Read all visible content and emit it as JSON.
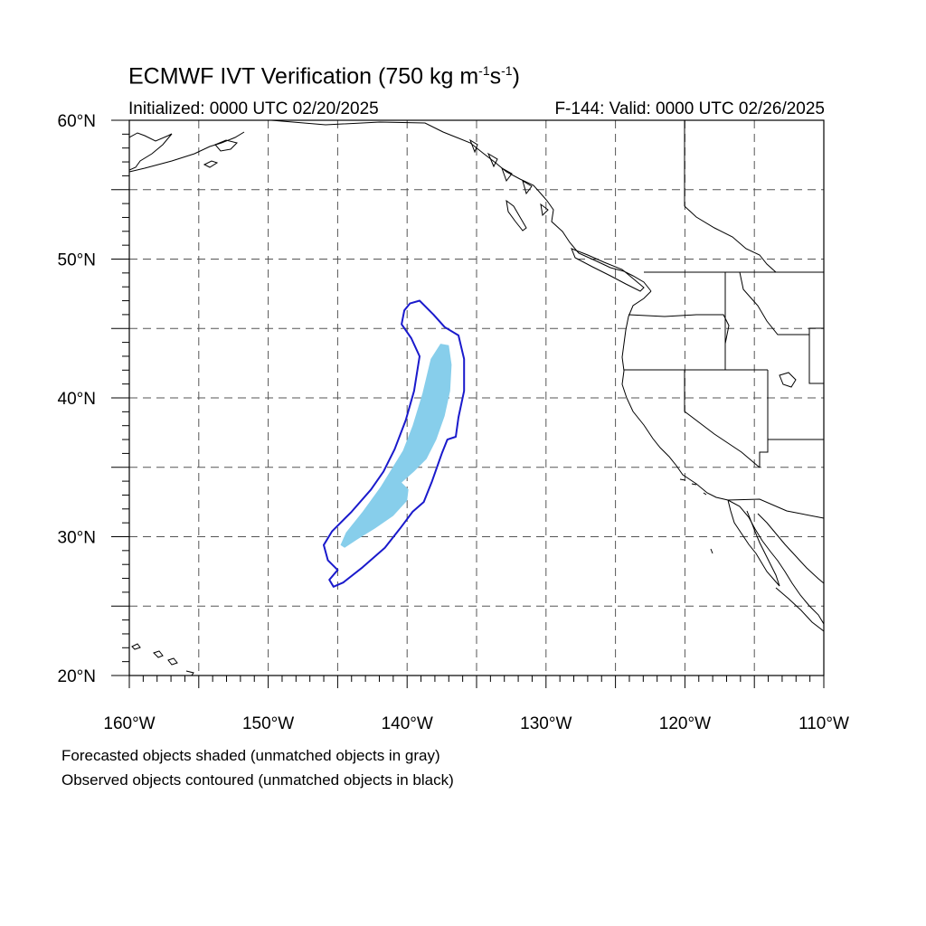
{
  "title": {
    "main": "ECMWF IVT Verification (750 kg m",
    "exp1": "-1",
    "s": "s",
    "exp2": "-1",
    "close": ")"
  },
  "subtitle": {
    "initialized": "Initialized: 0000 UTC 02/20/2025",
    "valid": "F-144: Valid: 0000 UTC 02/26/2025"
  },
  "map": {
    "extent": {
      "lon": [
        -160,
        -110
      ],
      "lat": [
        20,
        60
      ]
    },
    "gridlines": "dashed",
    "lat_labels": [
      {
        "lat": 60,
        "text": "60°N"
      },
      {
        "lat": 50,
        "text": "50°N"
      },
      {
        "lat": 40,
        "text": "40°N"
      },
      {
        "lat": 30,
        "text": "30°N"
      },
      {
        "lat": 20,
        "text": "20°N"
      }
    ],
    "lon_labels": [
      {
        "lon": -160,
        "text": "160°W"
      },
      {
        "lon": -150,
        "text": "150°W"
      },
      {
        "lon": -140,
        "text": "140°W"
      },
      {
        "lon": -130,
        "text": "130°W"
      },
      {
        "lon": -120,
        "text": "120°W"
      },
      {
        "lon": -110,
        "text": "110°W"
      }
    ],
    "colors": {
      "forecast_fill": "#87ceeb",
      "observed_contour": "#1a1acc",
      "coastline": "#000000",
      "grid": "#555555"
    },
    "forecast_object": {
      "style": "shaded",
      "outline": [
        [
          -144.8,
          29.4
        ],
        [
          -144.5,
          29.2
        ],
        [
          -143.6,
          29.8
        ],
        [
          -142.3,
          30.6
        ],
        [
          -141.0,
          31.5
        ],
        [
          -140.0,
          32.6
        ],
        [
          -139.9,
          33.4
        ],
        [
          -140.4,
          33.9
        ],
        [
          -139.5,
          34.7
        ],
        [
          -138.6,
          35.6
        ],
        [
          -137.9,
          37.0
        ],
        [
          -137.3,
          38.7
        ],
        [
          -136.9,
          40.5
        ],
        [
          -136.8,
          42.4
        ],
        [
          -137.0,
          43.8
        ],
        [
          -137.6,
          43.9
        ],
        [
          -138.3,
          42.8
        ],
        [
          -138.9,
          40.3
        ],
        [
          -139.6,
          38.0
        ],
        [
          -140.3,
          36.2
        ],
        [
          -141.1,
          34.9
        ],
        [
          -141.9,
          33.6
        ],
        [
          -143.2,
          31.8
        ],
        [
          -144.4,
          30.3
        ]
      ]
    },
    "observed_object": {
      "style": "contoured",
      "outline": [
        [
          -145.3,
          26.4
        ],
        [
          -144.6,
          26.7
        ],
        [
          -143.2,
          27.8
        ],
        [
          -141.6,
          29.2
        ],
        [
          -140.5,
          30.6
        ],
        [
          -139.6,
          31.8
        ],
        [
          -138.8,
          32.5
        ],
        [
          -138.2,
          34.0
        ],
        [
          -137.5,
          36.0
        ],
        [
          -137.1,
          37.0
        ],
        [
          -136.5,
          37.2
        ],
        [
          -136.3,
          38.6
        ],
        [
          -135.9,
          40.5
        ],
        [
          -135.9,
          42.8
        ],
        [
          -136.3,
          44.5
        ],
        [
          -137.3,
          45.1
        ],
        [
          -138.1,
          46.0
        ],
        [
          -139.1,
          47.0
        ],
        [
          -139.8,
          46.8
        ],
        [
          -140.2,
          46.3
        ],
        [
          -140.4,
          45.3
        ],
        [
          -139.7,
          44.3
        ],
        [
          -139.1,
          43.0
        ],
        [
          -139.5,
          40.5
        ],
        [
          -140.1,
          38.4
        ],
        [
          -140.9,
          36.3
        ],
        [
          -141.7,
          34.7
        ],
        [
          -142.6,
          33.4
        ],
        [
          -144.0,
          31.8
        ],
        [
          -145.4,
          30.4
        ],
        [
          -146.0,
          29.4
        ],
        [
          -145.7,
          28.3
        ],
        [
          -145.0,
          27.6
        ],
        [
          -145.6,
          26.9
        ]
      ]
    }
  },
  "captions": {
    "line1": "Forecasted objects shaded (unmatched objects in gray)",
    "line2": "Observed objects contoured (unmatched objects in black)"
  }
}
